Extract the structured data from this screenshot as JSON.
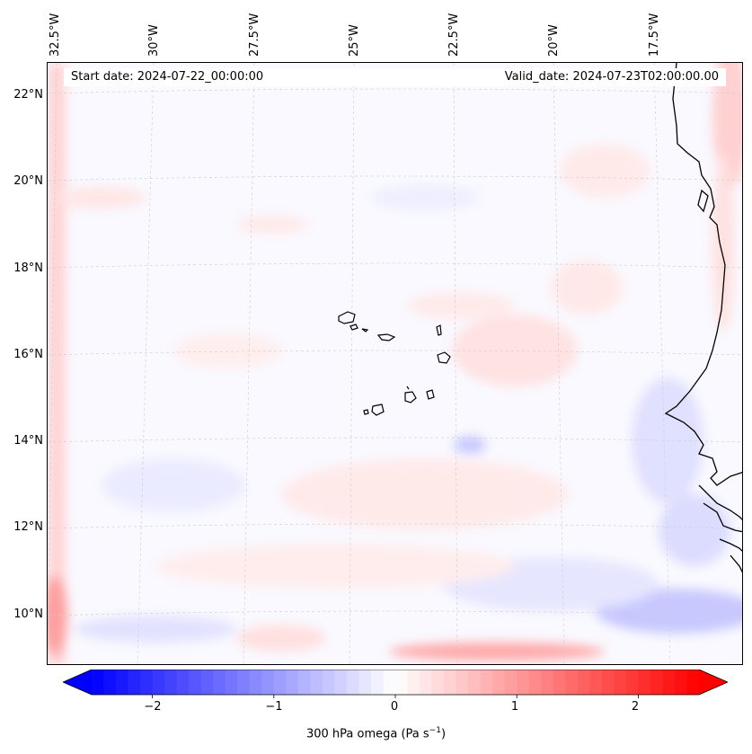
{
  "map": {
    "title_left": "Start date: 2024-07-22_00:00:00",
    "title_right": "Valid_date: 2024-07-23T02:00:00.00",
    "variable_label": "300 hPa omega (Pa s",
    "variable_unit_exp": "−1",
    "variable_label_end": ")",
    "lon_labels": [
      "32.5°W",
      "30°W",
      "27.5°W",
      "25°W",
      "22.5°W",
      "20°W",
      "17.5°W"
    ],
    "lat_labels": [
      "22°N",
      "20°N",
      "18°N",
      "16°N",
      "14°N",
      "12°N",
      "10°N"
    ],
    "colors": {
      "coastline": "#000000",
      "positive": "#ff0000",
      "negative": "#0000ff",
      "zero": "#ffffff"
    }
  },
  "colorbar": {
    "ticks": [
      "−2",
      "−1",
      "0",
      "1",
      "2"
    ],
    "tick_values": [
      -2,
      -1,
      0,
      1,
      2
    ],
    "range": [
      -2.5,
      2.5
    ],
    "extend": "both"
  }
}
